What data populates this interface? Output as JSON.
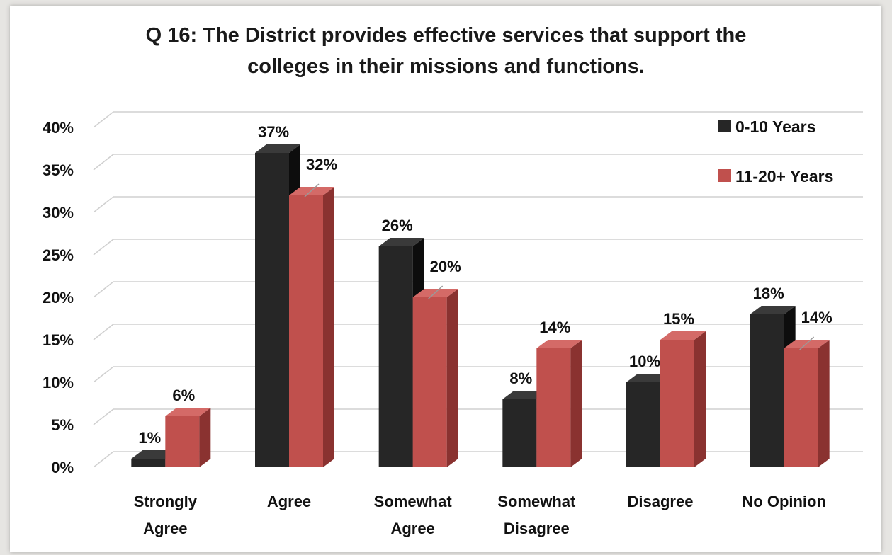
{
  "chart_data": {
    "type": "bar",
    "title": "Q 16: The District provides effective services that support the\ncolleges in their missions and functions.",
    "categories": [
      [
        "Strongly",
        "Agree"
      ],
      [
        "Agree"
      ],
      [
        "Somewhat",
        "Agree"
      ],
      [
        "Somewhat",
        "Disagree"
      ],
      [
        "Disagree"
      ],
      [
        "No Opinion"
      ]
    ],
    "series": [
      {
        "name": "0-10  Years",
        "values": [
          1,
          37,
          26,
          8,
          10,
          18
        ],
        "labels": [
          "1%",
          "37%",
          "26%",
          "8%",
          "10%",
          "18%"
        ],
        "color": "#262626",
        "side_color": "#0d0d0d",
        "top_color": "#3a3a3a"
      },
      {
        "name": "11-20+ Years",
        "values": [
          6,
          32,
          20,
          14,
          15,
          14
        ],
        "labels": [
          "6%",
          "32%",
          "20%",
          "14%",
          "15%",
          "14%"
        ],
        "color": "#c0504d",
        "side_color": "#8a3230",
        "top_color": "#d46a67"
      }
    ],
    "ylim": [
      0,
      40
    ],
    "yticks": [
      "0%",
      "5%",
      "10%",
      "15%",
      "20%",
      "25%",
      "30%",
      "35%",
      "40%"
    ],
    "grid": true,
    "legend_position": "top-right",
    "style": "3d-clustered-column"
  }
}
